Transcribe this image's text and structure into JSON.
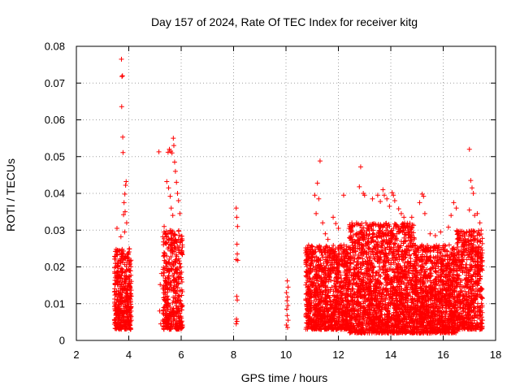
{
  "chart_data": {
    "type": "scatter",
    "title": "Day 157 of 2024, Rate Of TEC Index for receiver kitg",
    "xlabel": "GPS time / hours",
    "ylabel": "ROTI / TECUs",
    "xlim": [
      2,
      18
    ],
    "ylim": [
      0,
      0.08
    ],
    "x_ticks": [
      2,
      4,
      6,
      8,
      10,
      12,
      14,
      16,
      18
    ],
    "x_tick_labels": [
      "2",
      "4",
      "6",
      "8",
      "10",
      "12",
      "14",
      "16",
      "18"
    ],
    "y_ticks": [
      0,
      0.01,
      0.02,
      0.03,
      0.04,
      0.05,
      0.06,
      0.07,
      0.08
    ],
    "y_tick_labels": [
      "0",
      "0.01",
      "0.02",
      "0.03",
      "0.04",
      "0.05",
      "0.06",
      "0.07",
      "0.08"
    ],
    "grid": true,
    "marker": "+",
    "marker_color": "#ff0000",
    "series": [
      {
        "name": "ROTI",
        "points": [
          [
            3.55,
            0.0305
          ],
          [
            3.62,
            0.0245
          ],
          [
            3.68,
            0.0215
          ],
          [
            3.72,
            0.0765
          ],
          [
            3.74,
            0.0718
          ],
          [
            3.76,
            0.072
          ],
          [
            3.73,
            0.0636
          ],
          [
            3.77,
            0.0553
          ],
          [
            3.78,
            0.0511
          ],
          [
            3.9,
            0.0432
          ],
          [
            3.88,
            0.0422
          ],
          [
            3.85,
            0.0398
          ],
          [
            3.82,
            0.0375
          ],
          [
            3.86,
            0.035
          ],
          [
            3.8,
            0.0342
          ],
          [
            3.92,
            0.032
          ],
          [
            3.84,
            0.0295
          ],
          [
            3.7,
            0.0282
          ],
          [
            5.15,
            0.0513
          ],
          [
            5.5,
            0.0512
          ],
          [
            5.55,
            0.052
          ],
          [
            5.6,
            0.0515
          ],
          [
            5.65,
            0.051
          ],
          [
            5.7,
            0.055
          ],
          [
            5.72,
            0.053
          ],
          [
            5.75,
            0.0485
          ],
          [
            5.78,
            0.046
          ],
          [
            5.82,
            0.043
          ],
          [
            5.86,
            0.04
          ],
          [
            5.9,
            0.038
          ],
          [
            5.95,
            0.0345
          ],
          [
            5.45,
            0.0432
          ],
          [
            5.52,
            0.0415
          ],
          [
            5.58,
            0.0392
          ],
          [
            5.62,
            0.036
          ],
          [
            5.68,
            0.034
          ],
          [
            5.35,
            0.031
          ],
          [
            5.25,
            0.0182
          ],
          [
            5.2,
            0.0152
          ],
          [
            5.18,
            0.008
          ],
          [
            5.22,
            0.0045
          ],
          [
            8.1,
            0.036
          ],
          [
            8.12,
            0.0335
          ],
          [
            8.15,
            0.031
          ],
          [
            8.13,
            0.0262
          ],
          [
            8.14,
            0.0235
          ],
          [
            8.1,
            0.022
          ],
          [
            8.16,
            0.0218
          ],
          [
            8.12,
            0.012
          ],
          [
            8.14,
            0.011
          ],
          [
            8.11,
            0.0058
          ],
          [
            8.13,
            0.0052
          ],
          [
            8.1,
            0.0045
          ],
          [
            10.05,
            0.0162
          ],
          [
            10.08,
            0.0145
          ],
          [
            10.02,
            0.013
          ],
          [
            10.06,
            0.0118
          ],
          [
            10.04,
            0.0108
          ],
          [
            10.07,
            0.0095
          ],
          [
            10.03,
            0.0085
          ],
          [
            10.05,
            0.0068
          ],
          [
            10.08,
            0.0055
          ],
          [
            10.02,
            0.0042
          ],
          [
            10.06,
            0.0035
          ],
          [
            11.3,
            0.0488
          ],
          [
            11.2,
            0.0428
          ],
          [
            11.1,
            0.0395
          ],
          [
            11.25,
            0.0385
          ],
          [
            11.15,
            0.0345
          ],
          [
            11.4,
            0.032
          ],
          [
            11.8,
            0.0335
          ],
          [
            11.9,
            0.0318
          ],
          [
            12.0,
            0.0305
          ],
          [
            12.2,
            0.0395
          ],
          [
            11.5,
            0.029
          ],
          [
            11.6,
            0.0275
          ],
          [
            12.85,
            0.0472
          ],
          [
            12.95,
            0.04
          ],
          [
            12.8,
            0.0418
          ],
          [
            13.0,
            0.0395
          ],
          [
            13.3,
            0.0385
          ],
          [
            13.5,
            0.0395
          ],
          [
            13.6,
            0.0378
          ],
          [
            13.7,
            0.041
          ],
          [
            13.75,
            0.0395
          ],
          [
            13.85,
            0.0385
          ],
          [
            13.95,
            0.0365
          ],
          [
            14.05,
            0.0402
          ],
          [
            14.1,
            0.0395
          ],
          [
            14.15,
            0.038
          ],
          [
            14.3,
            0.0358
          ],
          [
            14.4,
            0.0345
          ],
          [
            14.5,
            0.0335
          ],
          [
            14.8,
            0.0335
          ],
          [
            15.1,
            0.0375
          ],
          [
            15.2,
            0.0398
          ],
          [
            15.25,
            0.0392
          ],
          [
            15.3,
            0.0345
          ],
          [
            15.5,
            0.029
          ],
          [
            15.7,
            0.0285
          ],
          [
            15.9,
            0.0295
          ],
          [
            16.2,
            0.0308
          ],
          [
            16.3,
            0.034
          ],
          [
            16.4,
            0.0375
          ],
          [
            16.5,
            0.036
          ],
          [
            16.8,
            0.029
          ],
          [
            17.0,
            0.052
          ],
          [
            17.05,
            0.0435
          ],
          [
            17.1,
            0.0415
          ],
          [
            17.15,
            0.04
          ],
          [
            17.0,
            0.0355
          ],
          [
            17.2,
            0.034
          ],
          [
            17.3,
            0.0345
          ],
          [
            17.4,
            0.032
          ],
          [
            17.45,
            0.03
          ]
        ],
        "clusters": [
          {
            "x_from": 3.45,
            "x_to": 4.1,
            "y_min": 0.003,
            "y_max": 0.025,
            "count": 420
          },
          {
            "x_from": 5.3,
            "x_to": 6.05,
            "y_min": 0.003,
            "y_max": 0.03,
            "count": 420
          },
          {
            "x_from": 10.75,
            "x_to": 12.4,
            "y_min": 0.003,
            "y_max": 0.026,
            "count": 1100
          },
          {
            "x_from": 12.4,
            "x_to": 14.9,
            "y_min": 0.002,
            "y_max": 0.032,
            "count": 1800
          },
          {
            "x_from": 14.9,
            "x_to": 16.5,
            "y_min": 0.002,
            "y_max": 0.026,
            "count": 1100
          },
          {
            "x_from": 16.5,
            "x_to": 17.5,
            "y_min": 0.003,
            "y_max": 0.03,
            "count": 650
          }
        ]
      }
    ]
  }
}
